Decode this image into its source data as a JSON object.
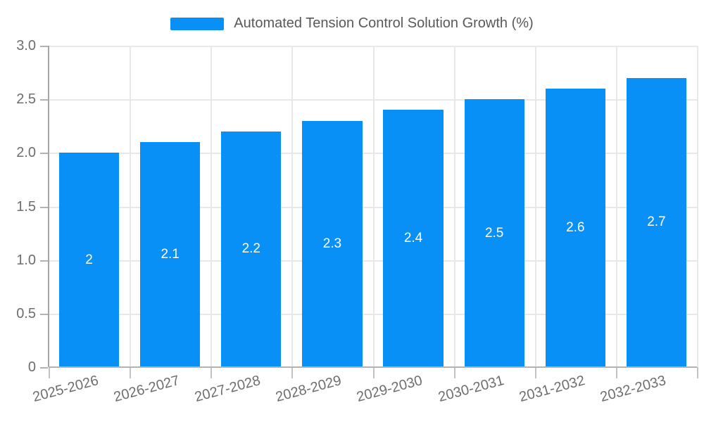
{
  "chart_data": {
    "type": "bar",
    "title": "Automated Tension Control Solution Growth (%)",
    "legend": [
      "Automated Tension Control Solution Growth (%)"
    ],
    "legend_position": "top",
    "categories": [
      "2025-2026",
      "2026-2027",
      "2027-2028",
      "2028-2029",
      "2029-2030",
      "2030-2031",
      "2031-2032",
      "2032-2033"
    ],
    "values": [
      2,
      2.1,
      2.2,
      2.3,
      2.4,
      2.5,
      2.6,
      2.7
    ],
    "bar_value_labels": [
      "2",
      "2.1",
      "2.2",
      "2.3",
      "2.4",
      "2.5",
      "2.6",
      "2.7"
    ],
    "xlabel": "",
    "ylabel": "",
    "ylim": [
      0,
      3
    ],
    "y_ticks": [
      "0",
      "0.5",
      "1.0",
      "1.5",
      "2.0",
      "2.5",
      "3.0"
    ],
    "y_tick_values": [
      0,
      0.5,
      1,
      1.5,
      2,
      2.5,
      3
    ],
    "grid": true,
    "x_label_rotation_deg": 15,
    "colors": {
      "bar": "#0890f7",
      "grid": "#e8e8e8",
      "axis": "#a6a6a6",
      "tick_text": "#6e6e6e",
      "legend_text": "#595959",
      "bar_label_text": "#ffffff",
      "background": "#ffffff"
    }
  }
}
